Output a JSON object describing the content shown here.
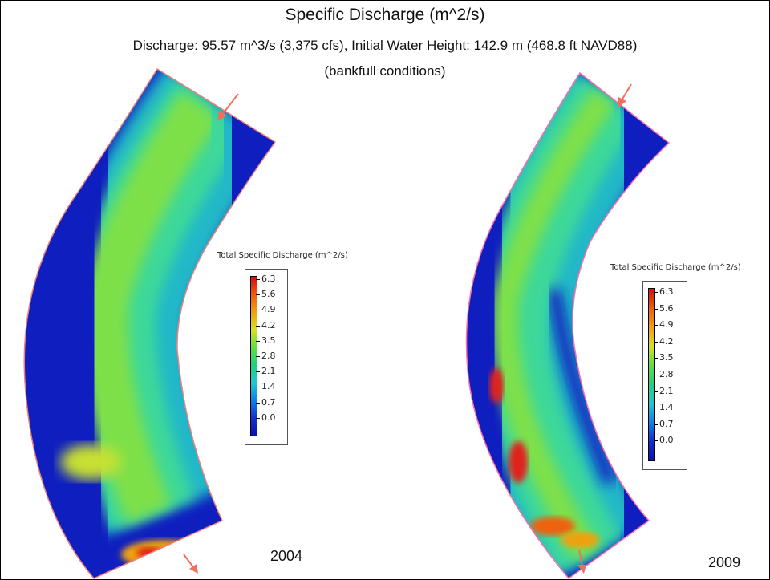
{
  "title": "Specific Discharge (m^2/s)",
  "subtitle": "Discharge: 95.57 m^3/s (3,375 cfs), Initial Water Height: 142.9 m (468.8 ft NAVD88)",
  "condition": "(bankfull conditions)",
  "colors": {
    "channel_low": "#0f1fbf",
    "flow_mid": "#2fd6a0",
    "flow_high": "#7ee04a",
    "hotspot": "#e0201a",
    "boundary": "#f08080",
    "arrow": "#f07060"
  },
  "legend": {
    "title": "Total Specific Discharge (m^2/s)",
    "ticks": [
      "6.3",
      "5.6",
      "4.9",
      "4.2",
      "3.5",
      "2.8",
      "2.1",
      "1.4",
      "0.7",
      "0.0"
    ],
    "colormap": [
      "#d01010",
      "#f05a10",
      "#f0a010",
      "#d8e020",
      "#60e040",
      "#20d080",
      "#20c8d0",
      "#1080e8",
      "#1030d0",
      "#0c10b0"
    ]
  },
  "panels": [
    {
      "year": "2004"
    },
    {
      "year": "2009"
    }
  ]
}
